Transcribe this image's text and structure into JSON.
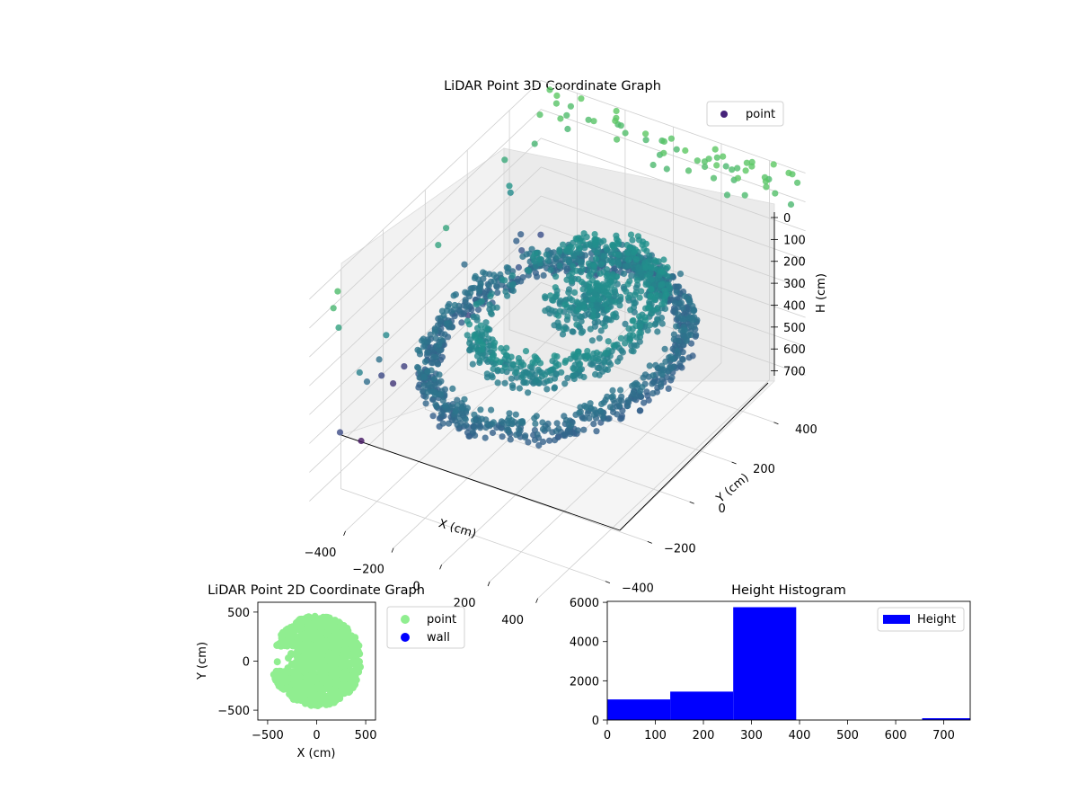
{
  "chart_data": [
    {
      "type": "scatter",
      "title": "LiDAR Point 3D Coordinate Graph",
      "xlabel": "X (cm)",
      "ylabel": "Y (cm)",
      "zlabel": "H (cm)",
      "xlim": [
        -550,
        550
      ],
      "ylim": [
        -550,
        550
      ],
      "zlim": [
        0,
        760
      ],
      "z_axis_inverted": true,
      "x_ticks": [
        "−400",
        "−200",
        "0",
        "200",
        "400"
      ],
      "y_ticks": [
        "−400",
        "−200",
        "0",
        "200",
        "400"
      ],
      "z_ticks": [
        "0",
        "100",
        "200",
        "300",
        "400",
        "500",
        "600",
        "700"
      ],
      "legend": [
        "point"
      ],
      "legend_position": "top-right",
      "colormap": "viridis",
      "series_color": "#46237a",
      "approx_point_count": 9000,
      "groups": [
        {
          "shape": "outer ring",
          "x_range": [
            -500,
            420
          ],
          "y_range": [
            -450,
            450
          ],
          "height_range": [
            330,
            420
          ]
        },
        {
          "shape": "inner partial ring with gap toward -X",
          "x_range": [
            -350,
            300
          ],
          "y_range": [
            -300,
            350
          ],
          "height_range": [
            230,
            320
          ]
        },
        {
          "shape": "sparse wall points",
          "x_range": [
            -550,
            550
          ],
          "y_range": [
            -550,
            550
          ],
          "height_range": [
            0,
            700
          ]
        }
      ]
    },
    {
      "type": "scatter",
      "title": "LiDAR Point 2D Coordinate Graph",
      "xlabel": "X (cm)",
      "ylabel": "Y (cm)",
      "xlim": [
        -600,
        600
      ],
      "ylim": [
        -600,
        600
      ],
      "x_ticks": [
        "−500",
        "0",
        "500"
      ],
      "y_ticks": [
        "500",
        "0",
        "−500"
      ],
      "legend": [
        "point",
        "wall"
      ],
      "legend_position": "right-outside",
      "series": [
        {
          "name": "point",
          "color": "#90ee90",
          "shape": "filled disc",
          "radius": 450,
          "gap_x_range": [
            -600,
            -200
          ],
          "gap_y_range": [
            -100,
            150
          ]
        },
        {
          "name": "wall",
          "color": "#0000ff"
        }
      ]
    },
    {
      "type": "bar",
      "title": "Height Histogram",
      "xlabel": "",
      "ylabel": "",
      "legend": [
        "Height"
      ],
      "legend_position": "top-right",
      "color": "#0000ff",
      "xlim": [
        0,
        755
      ],
      "ylim": [
        0,
        6050
      ],
      "x_ticks": [
        "0",
        "100",
        "200",
        "300",
        "400",
        "500",
        "600",
        "700"
      ],
      "y_ticks": [
        "0",
        "2000",
        "4000",
        "6000"
      ],
      "bins": [
        {
          "x0": 0,
          "x1": 131,
          "count": 1050
        },
        {
          "x0": 131,
          "x1": 262,
          "count": 1450
        },
        {
          "x0": 262,
          "x1": 393,
          "count": 5750
        },
        {
          "x0": 393,
          "x1": 524,
          "count": 0
        },
        {
          "x0": 524,
          "x1": 655,
          "count": 0
        },
        {
          "x0": 655,
          "x1": 786,
          "count": 90
        }
      ]
    }
  ]
}
